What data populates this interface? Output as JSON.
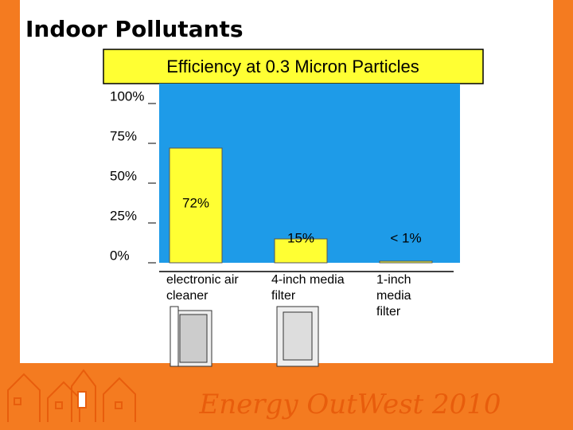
{
  "header": {
    "title": "Indoor Pollutants"
  },
  "chart_data": {
    "type": "bar",
    "title": "Efficiency at 0.3 Micron Particles",
    "categories": [
      "electronic air cleaner",
      "4-inch media filter",
      "1-inch media filter"
    ],
    "values": [
      72,
      15,
      1
    ],
    "value_labels": [
      "72%",
      "15%",
      "< 1%"
    ],
    "color": "#ffff33",
    "background": "#1e9be8",
    "ylim": [
      0,
      100
    ],
    "yticks": [
      {
        "value": 0,
        "label": "0%"
      },
      {
        "value": 25,
        "label": "25%"
      },
      {
        "value": 50,
        "label": "50%"
      },
      {
        "value": 75,
        "label": "75%"
      },
      {
        "value": 100,
        "label": "100%"
      }
    ]
  },
  "footer": {
    "brand": "Energy OutWest 2010"
  }
}
